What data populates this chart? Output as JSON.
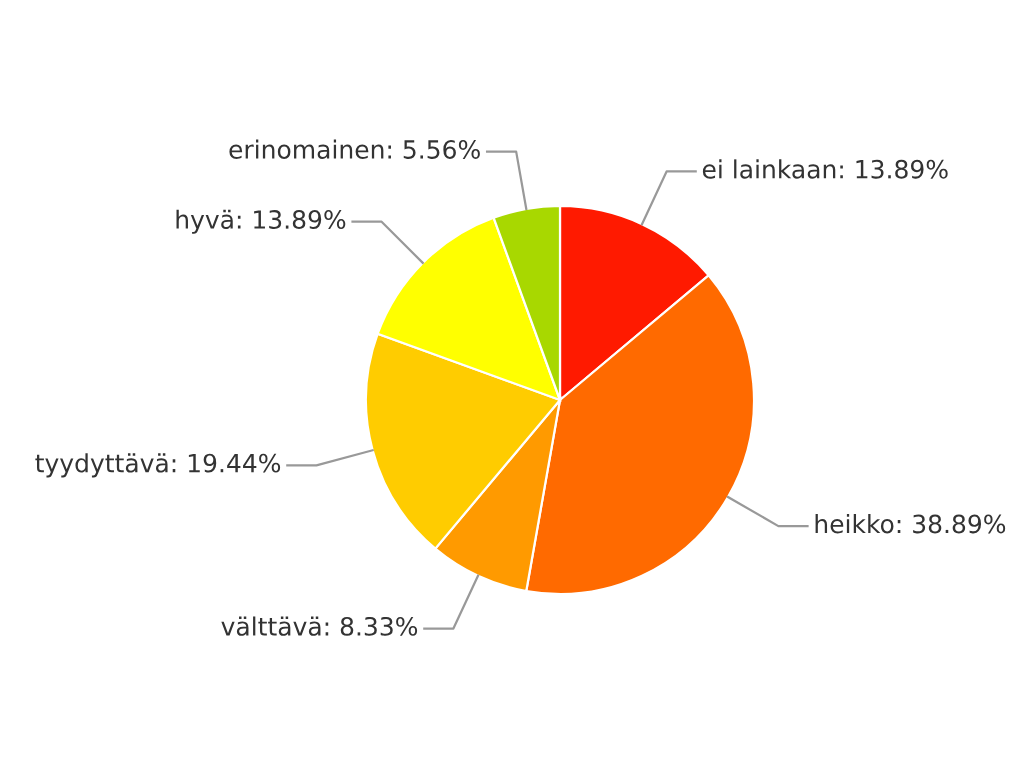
{
  "chart_data": {
    "type": "pie",
    "categories": [
      "ei lainkaan",
      "heikko",
      "välttävä",
      "tyydyttävä",
      "hyvä",
      "erinomainen"
    ],
    "values": [
      13.89,
      38.89,
      8.33,
      19.44,
      13.89,
      5.56
    ],
    "value_labels": [
      "13.89%",
      "38.89%",
      "8.33%",
      "19.44%",
      "13.89%",
      "5.56%"
    ],
    "colors": [
      "#ff1a00",
      "#ff6a00",
      "#ff9a00",
      "#ffcc00",
      "#ffff00",
      "#a8d800"
    ],
    "legend": false
  }
}
